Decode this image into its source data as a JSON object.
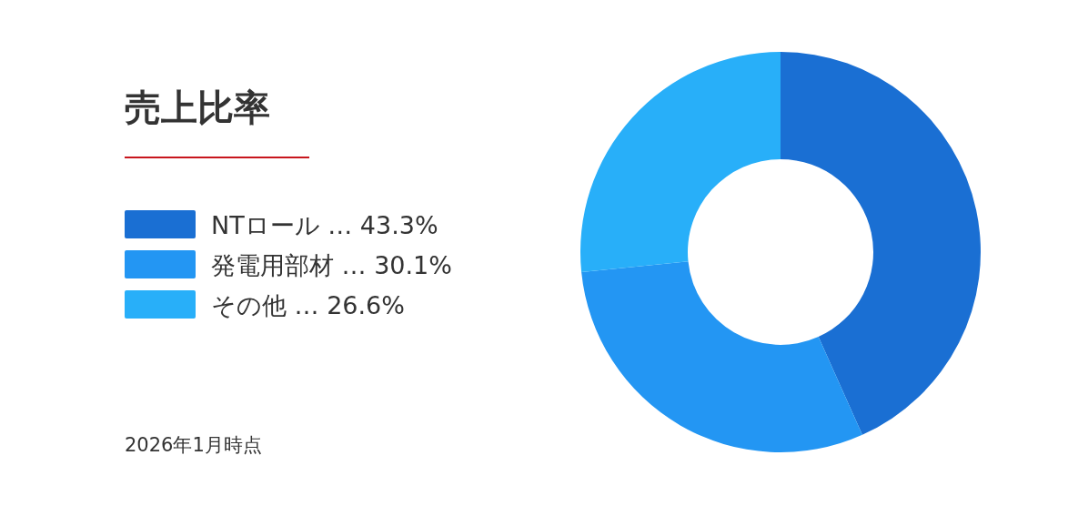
{
  "chart_data": {
    "type": "donut",
    "title": "売上比率",
    "categories": [
      "NTロール …",
      "発電用部材 …",
      "その他 …"
    ],
    "values": [
      43.3,
      30.1,
      26.6
    ],
    "value_labels": [
      "43.3%",
      "30.1%",
      "26.6%"
    ],
    "colors": [
      "#1a6fd3",
      "#2396f3",
      "#28aff9"
    ],
    "legend": "left",
    "annotations": [
      "2026年1月時点"
    ]
  }
}
